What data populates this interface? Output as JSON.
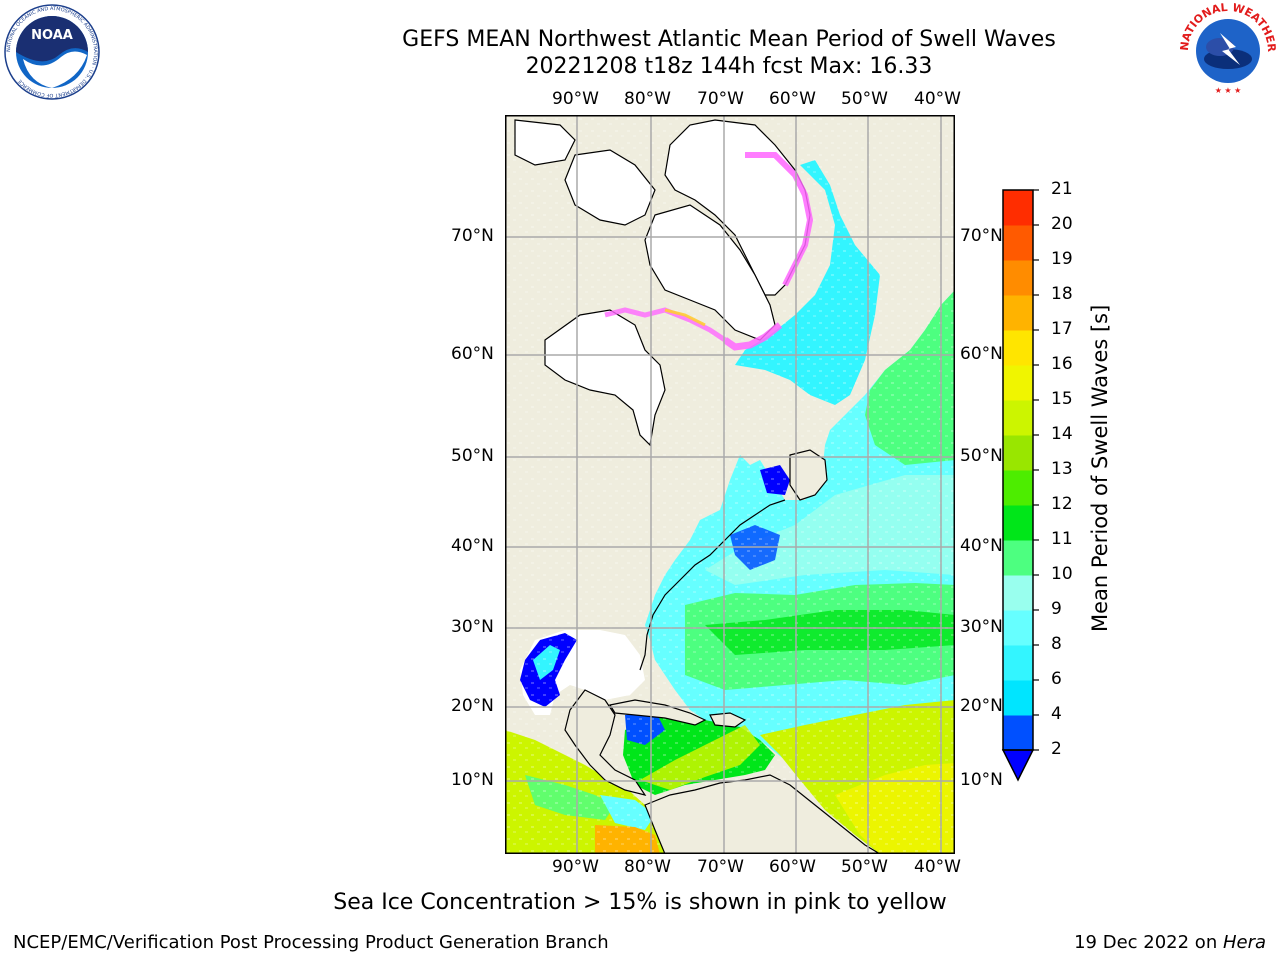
{
  "header": {
    "title_line1": "GEFS MEAN Northwest Atlantic Mean Period of Swell Waves",
    "title_line2": "20221208 t18z 144h fcst   Max: 16.33"
  },
  "logos": {
    "left": {
      "text": "NOAA",
      "ring_text": "NATIONAL OCEANIC AND ATMOSPHERIC ADMINISTRATION · U.S. DEPARTMENT OF COMMERCE"
    },
    "right": {
      "ring_text": "NATIONAL WEATHER SERVICE"
    }
  },
  "map": {
    "lon_labels": [
      "90°W",
      "80°W",
      "70°W",
      "60°W",
      "50°W",
      "40°W"
    ],
    "lat_labels": [
      "70°N",
      "60°N",
      "50°N",
      "40°N",
      "30°N",
      "20°N",
      "10°N"
    ],
    "colors": {
      "land": "#efedde",
      "ice_free_land": "#ffffff",
      "grid": "#aaaaaa"
    }
  },
  "colorbar": {
    "label": "Mean Period of Swell Waves [s]",
    "ticks": [
      "2",
      "4",
      "6",
      "8",
      "9",
      "10",
      "11",
      "12",
      "13",
      "14",
      "15",
      "16",
      "17",
      "18",
      "19",
      "20",
      "21"
    ],
    "colors": [
      "#0050ff",
      "#00e5ff",
      "#33f5ff",
      "#66ffff",
      "#99ffee",
      "#4dff80",
      "#00e619",
      "#4ded00",
      "#99e600",
      "#ccf500",
      "#f0f500",
      "#ffe500",
      "#ffb300",
      "#ff8c00",
      "#ff5a00",
      "#ff2d00"
    ],
    "under_color": "#0000ff"
  },
  "notes": {
    "subtitle": "Sea Ice Concentration > 15% is shown in pink to yellow"
  },
  "footer": {
    "left": "NCEP/EMC/Verification Post Processing Product Generation Branch",
    "right_prefix": "19 Dec 2022 on ",
    "right_host": "Hera"
  }
}
